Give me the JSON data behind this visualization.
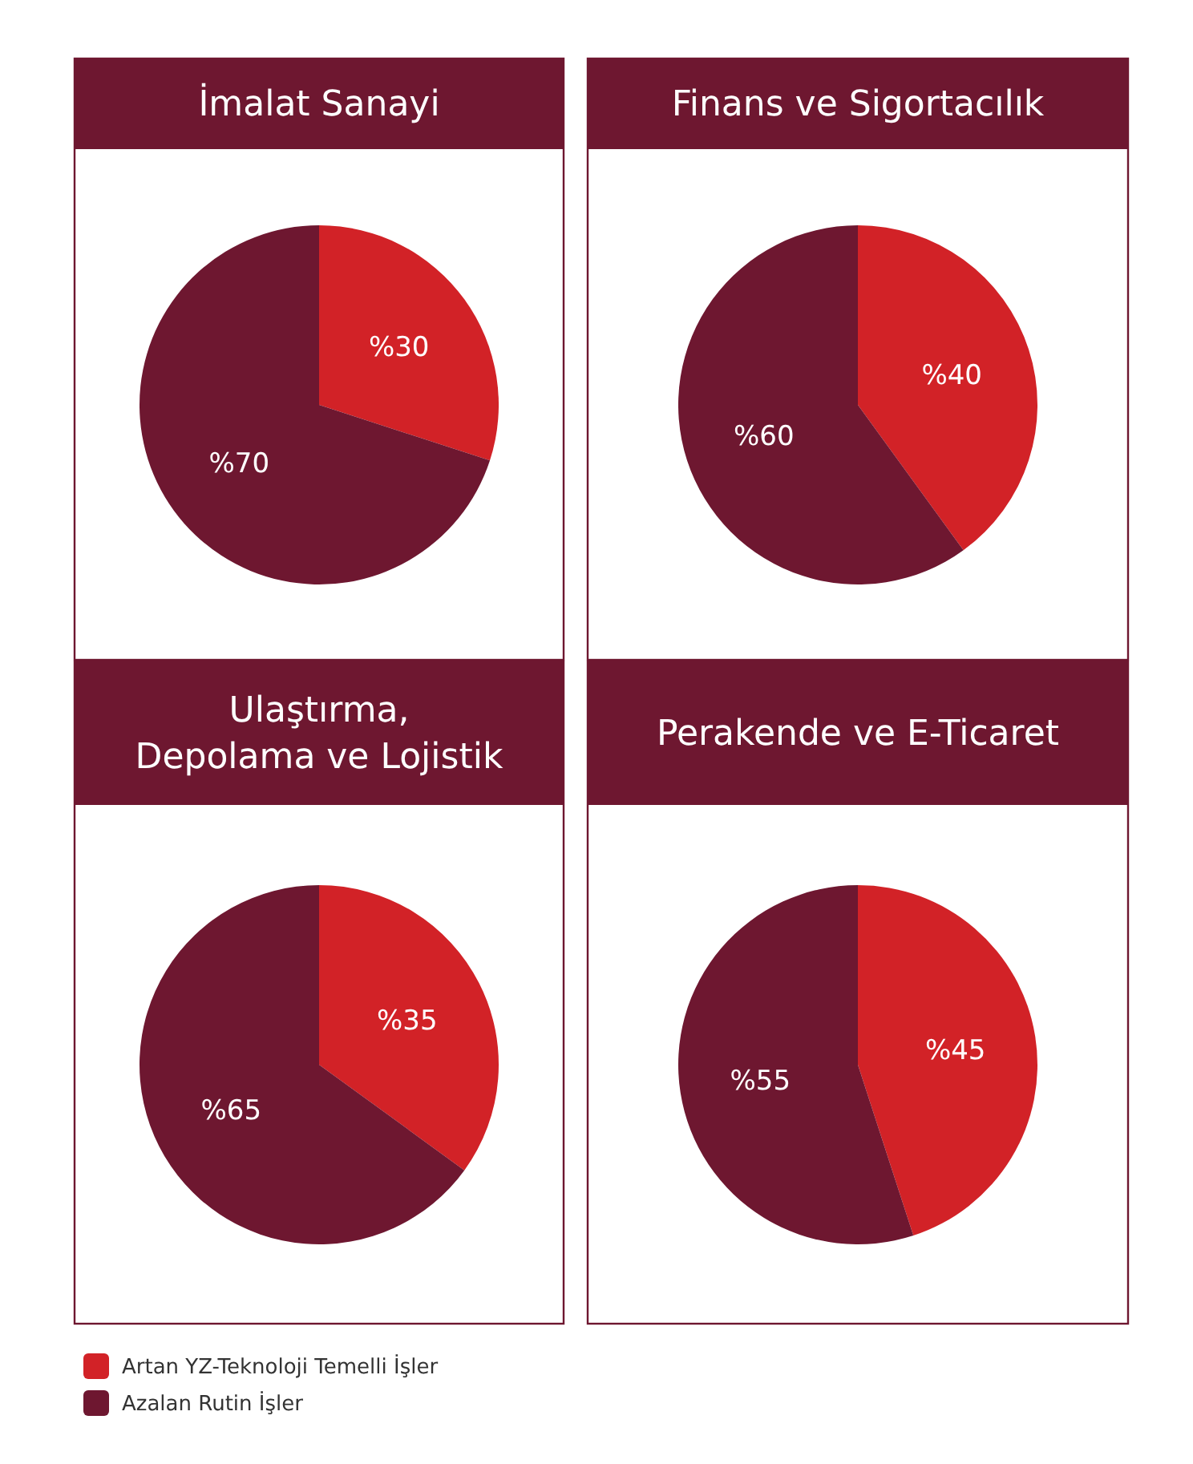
{
  "chart_data": [
    {
      "type": "pie",
      "title": "İmalat Sanayi",
      "categories": [
        null,
        null
      ],
      "values": [
        30,
        70
      ],
      "value_labels": [
        "%30",
        "%70"
      ],
      "colors": [
        "#d22227",
        "#6e1730"
      ]
    },
    {
      "type": "pie",
      "title": "Finans ve Sigortacılık",
      "categories": [
        null,
        null
      ],
      "values": [
        40,
        60
      ],
      "value_labels": [
        "%40",
        "%60"
      ],
      "colors": [
        "#d22227",
        "#6e1730"
      ]
    },
    {
      "type": "pie",
      "title": "Ulaştırma, Depolama ve Lojistik",
      "categories": [
        null,
        null
      ],
      "values": [
        35,
        65
      ],
      "value_labels": [
        "%35",
        "%65"
      ],
      "colors": [
        "#d22227",
        "#6e1730"
      ]
    },
    {
      "type": "pie",
      "title": "Perakende ve E-Ticaret",
      "categories": [
        "Artan YZ-Teknoloji Temelli İşler",
        "Azalan Rutin İşler"
      ],
      "values": [
        45,
        55
      ],
      "value_labels": [
        "%45",
        "%55"
      ],
      "colors": [
        "#d22227",
        "#6e1730"
      ],
      "legend": "bottom left"
    }
  ]
}
